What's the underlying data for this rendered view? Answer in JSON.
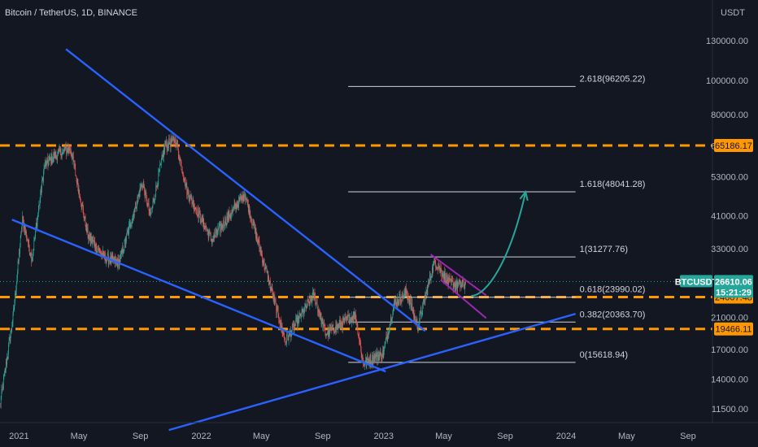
{
  "header": {
    "title": "Bitcoin / TetherUS, 1D, BINANCE"
  },
  "colors": {
    "background": "#131722",
    "grid": "#1e222d",
    "bull": "#26a69a",
    "bear": "#ef5350",
    "trendline": "#2962ff",
    "level": "#ff9800",
    "channel": "#9c27b0",
    "projection": "#26a69a",
    "fib": "#d1d4dc"
  },
  "chart_data": {
    "type": "candlestick",
    "title": "Bitcoin / TetherUS, 1D, BINANCE",
    "price_unit": "USDT",
    "scale": "log",
    "ylim": [
      10500,
      170000
    ],
    "xlim": [
      "2020-11-24",
      "2024-10-20"
    ],
    "grid": false,
    "y_ticks": [
      "130000.00",
      "100000.00",
      "80000.00",
      "65000.00",
      "53000.00",
      "41000.00",
      "33000.00",
      "21000.00",
      "17000.00",
      "14000.00",
      "11500.00"
    ],
    "x_ticks": [
      {
        "label": "2021",
        "date": "2021-01-01"
      },
      {
        "label": "May",
        "date": "2021-05-01"
      },
      {
        "label": "Sep",
        "date": "2021-09-01"
      },
      {
        "label": "2022",
        "date": "2022-01-01"
      },
      {
        "label": "May",
        "date": "2022-05-01"
      },
      {
        "label": "Sep",
        "date": "2022-09-01"
      },
      {
        "label": "2023",
        "date": "2023-01-01"
      },
      {
        "label": "May",
        "date": "2023-05-01"
      },
      {
        "label": "Sep",
        "date": "2023-09-01"
      },
      {
        "label": "2024",
        "date": "2024-01-01"
      },
      {
        "label": "May",
        "date": "2024-05-01"
      },
      {
        "label": "Sep",
        "date": "2024-09-01"
      }
    ],
    "price_path": [
      [
        "2020-11-24",
        11800
      ],
      [
        "2020-12-20",
        21000
      ],
      [
        "2021-01-08",
        40000
      ],
      [
        "2021-01-27",
        31000
      ],
      [
        "2021-02-21",
        57000
      ],
      [
        "2021-03-13",
        61000
      ],
      [
        "2021-04-14",
        64000
      ],
      [
        "2021-05-19",
        36000
      ],
      [
        "2021-06-22",
        31000
      ],
      [
        "2021-07-20",
        30000
      ],
      [
        "2021-09-05",
        51000
      ],
      [
        "2021-09-21",
        41000
      ],
      [
        "2021-10-20",
        65000
      ],
      [
        "2021-11-10",
        68000
      ],
      [
        "2021-12-04",
        48000
      ],
      [
        "2022-01-22",
        35000
      ],
      [
        "2022-03-29",
        47500
      ],
      [
        "2022-05-12",
        28000
      ],
      [
        "2022-06-18",
        18000
      ],
      [
        "2022-08-14",
        24400
      ],
      [
        "2022-09-07",
        18800
      ],
      [
        "2022-11-05",
        21400
      ],
      [
        "2022-11-21",
        15600
      ],
      [
        "2022-12-31",
        16500
      ],
      [
        "2023-01-22",
        23000
      ],
      [
        "2023-02-16",
        24800
      ],
      [
        "2023-03-10",
        19800
      ],
      [
        "2023-04-13",
        30500
      ],
      [
        "2023-05-12",
        26300
      ],
      [
        "2023-06-11",
        25900
      ],
      [
        "2023-06-14",
        26610
      ]
    ],
    "trendlines": [
      {
        "name": "descending-resistance",
        "from": [
          "2021-04-05",
          123000
        ],
        "to": [
          "2023-03-25",
          19200
        ]
      },
      {
        "name": "descending-support",
        "from": [
          "2020-12-18",
          40000
        ],
        "to": [
          "2023-01-05",
          14700
        ]
      },
      {
        "name": "rising-support",
        "from": [
          "2021-10-28",
          10000
        ],
        "to": [
          "2024-01-20",
          21500
        ]
      }
    ],
    "channel": [
      {
        "from": [
          "2023-04-05",
          31800
        ],
        "to": [
          "2023-07-25",
          24300
        ]
      },
      {
        "from": [
          "2023-04-25",
          26900
        ],
        "to": [
          "2023-07-25",
          20900
        ]
      }
    ],
    "projection_path": [
      [
        "2023-06-25",
        24200
      ],
      [
        "2023-07-25",
        24200
      ],
      [
        "2023-09-10",
        30000
      ],
      [
        "2023-10-12",
        48000
      ]
    ],
    "horizontal_levels": [
      {
        "value": 65186.17,
        "label": "65186.17"
      },
      {
        "value": 24007.48,
        "label": "24007.48"
      },
      {
        "value": 19466.11,
        "label": "19466.11"
      }
    ],
    "fibonacci": {
      "from": "2022-10-22",
      "to": "2024-01-20",
      "levels": [
        {
          "value": 96205.22,
          "label": "2.618(96205.22)"
        },
        {
          "value": 48041.28,
          "label": "1.618(48041.28)"
        },
        {
          "value": 31277.76,
          "label": "1(31277.76)"
        },
        {
          "value": 23990.02,
          "label": "0.618(23990.02)"
        },
        {
          "value": 20363.7,
          "label": "0.382(20363.70)"
        },
        {
          "value": 15618.94,
          "label": "0(15618.94)"
        }
      ]
    },
    "last_price": {
      "value": 26610.06,
      "symbol": "BTCUSDT",
      "price": "26610.06",
      "countdown": "15:21:29"
    }
  }
}
